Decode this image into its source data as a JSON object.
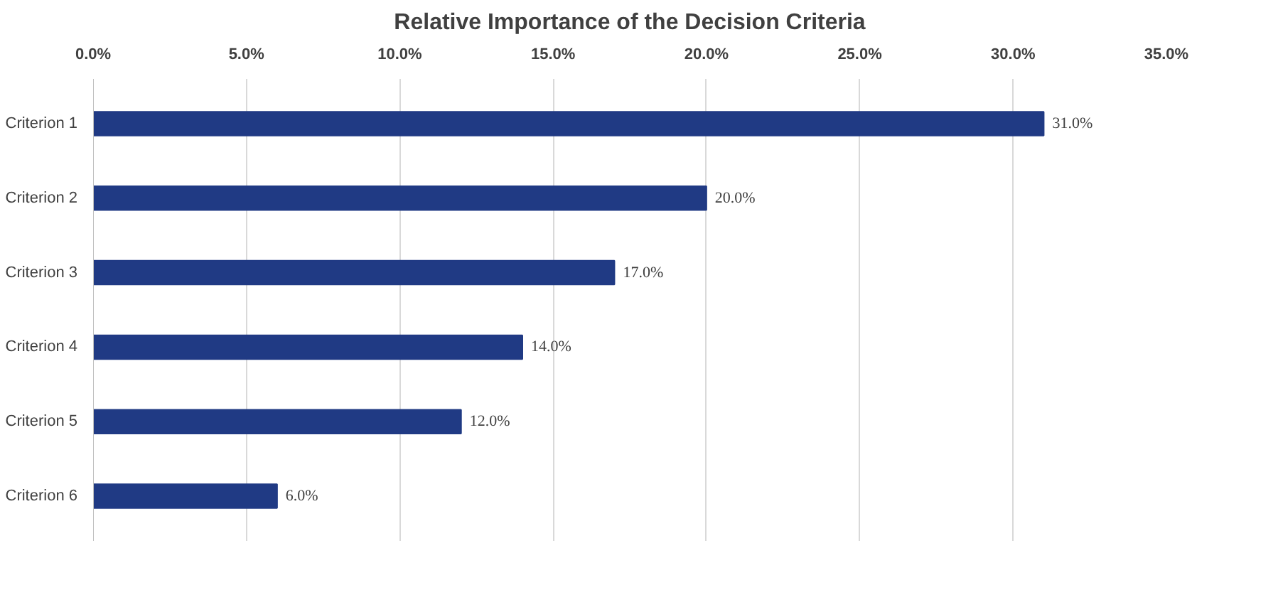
{
  "chart_data": {
    "type": "bar",
    "orientation": "horizontal",
    "title": "Relative Importance of the Decision Criteria",
    "categories": [
      "Criterion 1",
      "Criterion 2",
      "Criterion 3",
      "Criterion 4",
      "Criterion 5",
      "Criterion 6"
    ],
    "values": [
      31.0,
      20.0,
      17.0,
      14.0,
      12.0,
      6.0
    ],
    "value_labels": [
      "31.0%",
      "20.0%",
      "17.0%",
      "14.0%",
      "12.0%",
      "6.0%"
    ],
    "color": "#203a84",
    "xlim": [
      0,
      35
    ],
    "xticks": [
      {
        "value": 0,
        "label": "0.0%"
      },
      {
        "value": 5,
        "label": "5.0%"
      },
      {
        "value": 10,
        "label": "10.0%"
      },
      {
        "value": 15,
        "label": "15.0%"
      },
      {
        "value": 20,
        "label": "20.0%"
      },
      {
        "value": 25,
        "label": "25.0%"
      },
      {
        "value": 30,
        "label": "30.0%"
      },
      {
        "value": 35,
        "label": "35.0%"
      }
    ],
    "grid": "x"
  }
}
